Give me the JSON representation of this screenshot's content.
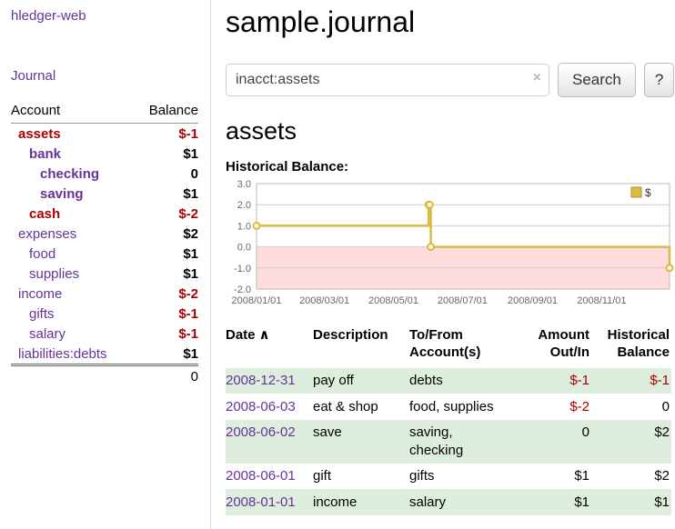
{
  "colors": {
    "link_purple": "#663399",
    "negative_red": "#aa0000",
    "row_green": "#ddeedd",
    "chart_line_gold": "#d9bb4a",
    "chart_negative_area": "#ffdddd"
  },
  "sidebar": {
    "app_title": "hledger-web",
    "journal_label": "Journal",
    "accounts": {
      "header_account": "Account",
      "header_balance": "Balance",
      "rows": [
        {
          "name": "assets",
          "balance": "$-1",
          "indent": 0,
          "bold": true,
          "red": true,
          "neg": true
        },
        {
          "name": "bank",
          "balance": "$1",
          "indent": 1,
          "bold": true,
          "red": false,
          "neg": false
        },
        {
          "name": "checking",
          "balance": "0",
          "indent": 2,
          "bold": true,
          "red": false,
          "neg": false
        },
        {
          "name": "saving",
          "balance": "$1",
          "indent": 2,
          "bold": true,
          "red": false,
          "neg": false
        },
        {
          "name": "cash",
          "balance": "$-2",
          "indent": 1,
          "bold": true,
          "red": true,
          "neg": true
        },
        {
          "name": "expenses",
          "balance": "$2",
          "indent": 0,
          "bold": false,
          "red": false,
          "neg": false
        },
        {
          "name": "food",
          "balance": "$1",
          "indent": 1,
          "bold": false,
          "red": false,
          "neg": false
        },
        {
          "name": "supplies",
          "balance": "$1",
          "indent": 1,
          "bold": false,
          "red": false,
          "neg": false
        },
        {
          "name": "income",
          "balance": "$-2",
          "indent": 0,
          "bold": false,
          "red": false,
          "neg": true
        },
        {
          "name": "gifts",
          "balance": "$-1",
          "indent": 1,
          "bold": false,
          "red": false,
          "neg": true
        },
        {
          "name": "salary",
          "balance": "$-1",
          "indent": 1,
          "bold": false,
          "red": false,
          "neg": true
        },
        {
          "name": "liabilities:debts",
          "balance": "$1",
          "indent": 0,
          "bold": false,
          "red": false,
          "neg": false
        }
      ],
      "total": "0"
    }
  },
  "main": {
    "title": "sample.journal",
    "search": {
      "value": "inacct:assets",
      "clear_icon": "×",
      "button_label": "Search",
      "help_label": "?"
    },
    "section_title": "assets",
    "chart_label": "Historical Balance:"
  },
  "chart_data": {
    "type": "line",
    "title": "Historical Balance",
    "step": true,
    "ylim": [
      -2,
      3
    ],
    "yticks": [
      3,
      2,
      1,
      0,
      -1,
      -2
    ],
    "xticks": [
      "2008/01/01",
      "2008/03/01",
      "2008/05/01",
      "2008/07/01",
      "2008/09/01",
      "2008/11/01"
    ],
    "negative_fill": "#ffdddd",
    "grid": true,
    "legend": {
      "label": "$",
      "position": "top-right"
    },
    "series": [
      {
        "name": "$",
        "color": "#d9bb4a",
        "points": [
          {
            "date": "2008-01-01",
            "value": 1
          },
          {
            "date": "2008-06-01",
            "value": 2
          },
          {
            "date": "2008-06-02",
            "value": 2
          },
          {
            "date": "2008-06-03",
            "value": 0
          },
          {
            "date": "2008-12-31",
            "value": -1
          }
        ]
      }
    ]
  },
  "register": {
    "headers": {
      "date": "Date",
      "sort_indicator": "∧",
      "description": "Description",
      "account_line1": "To/From",
      "account_line2": "Account(s)",
      "amount_line1": "Amount",
      "amount_line2": "Out/In",
      "balance_line1": "Historical",
      "balance_line2": "Balance"
    },
    "rows": [
      {
        "date": "2008-12-31",
        "description": "pay off",
        "accounts": "debts",
        "amount": "$-1",
        "amount_negative": true,
        "balance": "$-1",
        "balance_negative": true
      },
      {
        "date": "2008-06-03",
        "description": "eat & shop",
        "accounts": "food, supplies",
        "amount": "$-2",
        "amount_negative": true,
        "balance": "0",
        "balance_negative": false
      },
      {
        "date": "2008-06-02",
        "description": "save",
        "accounts": "saving, checking",
        "amount": "0",
        "amount_negative": false,
        "balance": "$2",
        "balance_negative": false
      },
      {
        "date": "2008-06-01",
        "description": "gift",
        "accounts": "gifts",
        "amount": "$1",
        "amount_negative": false,
        "balance": "$2",
        "balance_negative": false
      },
      {
        "date": "2008-01-01",
        "description": "income",
        "accounts": "salary",
        "amount": "$1",
        "amount_negative": false,
        "balance": "$1",
        "balance_negative": false
      }
    ]
  }
}
